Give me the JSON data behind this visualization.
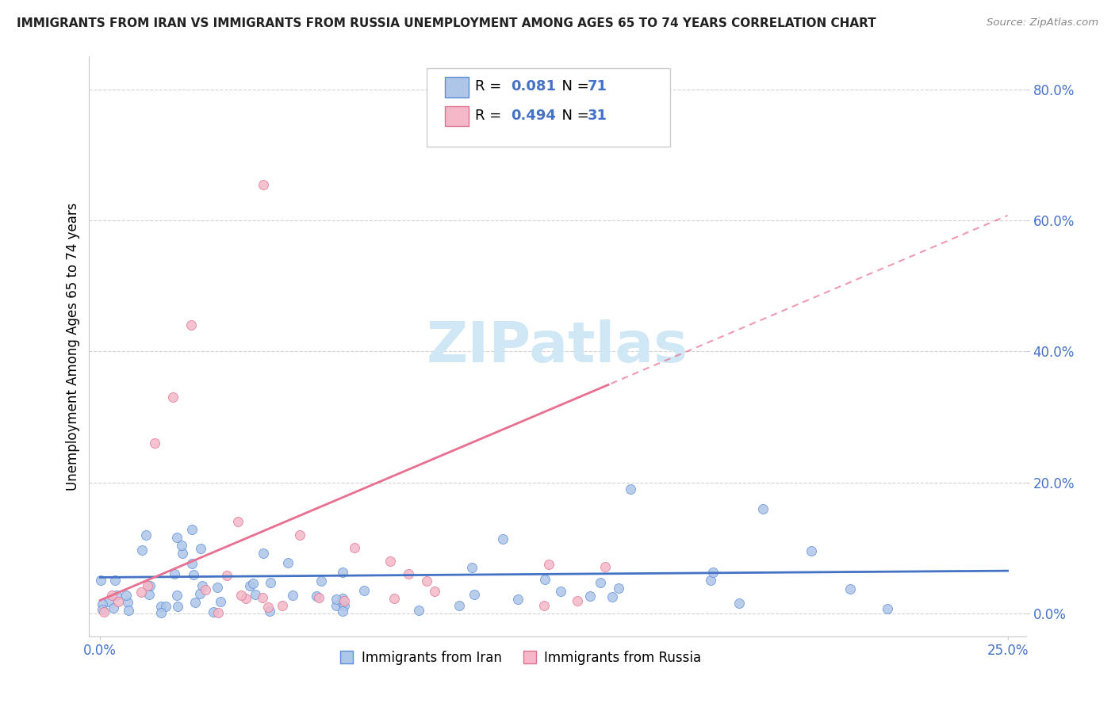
{
  "title": "IMMIGRANTS FROM IRAN VS IMMIGRANTS FROM RUSSIA UNEMPLOYMENT AMONG AGES 65 TO 74 YEARS CORRELATION CHART",
  "source": "Source: ZipAtlas.com",
  "ylabel": "Unemployment Among Ages 65 to 74 years",
  "xlim": [
    0.0,
    0.25
  ],
  "ylim": [
    0.0,
    0.85
  ],
  "xticklabels": [
    "0.0%",
    "25.0%"
  ],
  "yticklabels": [
    "0.0%",
    "20.0%",
    "40.0%",
    "60.0%",
    "80.0%"
  ],
  "ytick_vals": [
    0.0,
    0.2,
    0.4,
    0.6,
    0.8
  ],
  "xtick_vals": [
    0.0,
    0.25
  ],
  "legend_top_iran": "R = 0.081  N = 71",
  "legend_top_russia": "R = 0.494  N = 31",
  "legend_bottom_iran": "Immigrants from Iran",
  "legend_bottom_russia": "Immigrants from Russia",
  "iran_color": "#aec6e8",
  "russia_color": "#f4b8c8",
  "iran_edge_color": "#5b8dd9",
  "russia_edge_color": "#e07090",
  "iran_trend_color": "#4472c4",
  "russia_trend_color": "#e87090",
  "watermark_color": "#d0e8f5",
  "background_color": "#ffffff",
  "grid_color": "#c8c8c8",
  "title_color": "#222222",
  "source_color": "#888888",
  "tick_color": "#4472c4",
  "legend_r_color": "#4472c4",
  "iran_trend_slope": 0.04,
  "iran_trend_intercept": 0.055,
  "russia_trend_slope": 2.35,
  "russia_trend_intercept": 0.02
}
